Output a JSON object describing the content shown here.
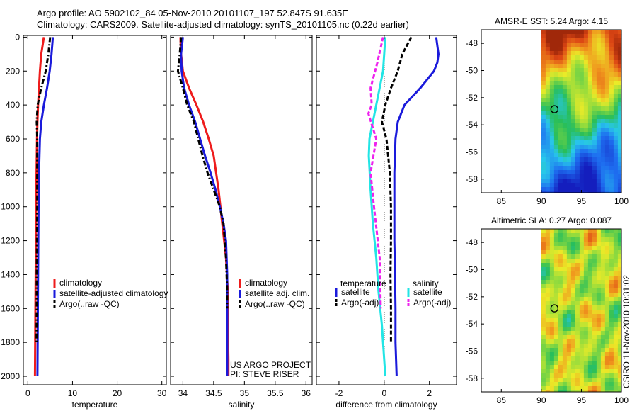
{
  "header": {
    "line1": "Argo profile: AO 5902102_84 05-Nov-2010 20101107_197 52.847S 91.635E",
    "line2": "Climatology: CARS2009. Satellite-adjusted climatology: synTS_20101105.nc (0.22d earlier)"
  },
  "footer": {
    "project": "US ARGO PROJECT",
    "pi": "PI: STEVE RISER",
    "stamp": "CSIRO 11-Nov-2010 10:31:02"
  },
  "colors": {
    "climatology": "#ee1c1c",
    "satellite": "#1a1adb",
    "argo": "#000000",
    "salinity_sat": "#22e5e5",
    "salinity_argo": "#ee22ee"
  },
  "chart_data": [
    {
      "type": "line",
      "id": "temperature",
      "xlabel": "temperature",
      "ylabel": "",
      "xlim": [
        -1,
        31
      ],
      "ylim": [
        2050,
        -10
      ],
      "xticks": [
        0,
        10,
        20,
        30
      ],
      "yticks": [
        0,
        200,
        400,
        600,
        800,
        1000,
        1200,
        1400,
        1600,
        1800,
        2000
      ],
      "legend": [
        "climatology",
        "satellite-adjusted climatology",
        "Argo(..raw -QC)"
      ],
      "series": [
        {
          "name": "climatology",
          "style": "solid",
          "color": "#ee1c1c",
          "x": [
            3.6,
            3.0,
            2.7,
            2.5,
            2.3,
            2.15,
            2.05,
            1.95,
            1.85,
            1.8,
            1.75,
            1.7,
            1.65,
            1.6
          ],
          "y": [
            0,
            100,
            200,
            300,
            400,
            500,
            600,
            800,
            1000,
            1200,
            1400,
            1600,
            1800,
            2000
          ]
        },
        {
          "name": "satellite-adjusted climatology",
          "style": "solid",
          "color": "#1a1adb",
          "x": [
            5.6,
            5.3,
            4.9,
            4.3,
            3.6,
            3.0,
            2.7,
            2.5,
            2.4,
            2.35,
            2.3,
            2.25,
            2.2,
            2.15
          ],
          "y": [
            0,
            100,
            200,
            300,
            400,
            500,
            600,
            800,
            1000,
            1200,
            1400,
            1600,
            1800,
            2000
          ]
        },
        {
          "name": "Argo(..raw -QC)",
          "style": "dashdot",
          "color": "#000000",
          "x": [
            5.0,
            4.6,
            4.0,
            3.0,
            2.2,
            2.0,
            2.1,
            2.1,
            2.1,
            2.05,
            2.0,
            2.0,
            1.95
          ],
          "y": [
            0,
            100,
            200,
            300,
            400,
            500,
            600,
            800,
            1000,
            1200,
            1400,
            1600,
            1800
          ]
        }
      ]
    },
    {
      "type": "line",
      "id": "salinity",
      "xlabel": "salinity",
      "xlim": [
        33.8,
        36.1
      ],
      "ylim": [
        2050,
        -10
      ],
      "xticks": [
        34,
        34.5,
        35,
        35.5,
        36
      ],
      "yticks": [
        0,
        200,
        400,
        600,
        800,
        1000,
        1200,
        1400,
        1600,
        1800,
        2000
      ],
      "legend": [
        "climatology",
        "satellite adj. clim.",
        "Argo(..raw -QC)"
      ],
      "series": [
        {
          "name": "climatology",
          "style": "solid",
          "color": "#ee1c1c",
          "x": [
            33.96,
            33.97,
            34.0,
            34.1,
            34.22,
            34.33,
            34.42,
            34.5,
            34.58,
            34.64,
            34.7,
            34.73,
            34.73,
            34.74,
            34.74
          ],
          "y": [
            0,
            100,
            200,
            300,
            400,
            500,
            600,
            700,
            900,
            1100,
            1300,
            1500,
            1700,
            1900,
            2000
          ]
        },
        {
          "name": "satellite adj. clim.",
          "style": "solid",
          "color": "#1a1adb",
          "x": [
            34.0,
            33.97,
            33.98,
            34.02,
            34.1,
            34.2,
            34.28,
            34.36,
            34.45,
            34.53,
            34.6,
            34.66,
            34.7,
            34.72,
            34.72,
            34.72,
            34.72
          ],
          "y": [
            0,
            100,
            200,
            300,
            400,
            500,
            600,
            700,
            800,
            900,
            1000,
            1100,
            1200,
            1400,
            1600,
            1800,
            2000
          ]
        },
        {
          "name": "Argo(..raw -QC)",
          "style": "dashdot",
          "color": "#000000",
          "x": [
            33.97,
            33.95,
            33.92,
            34.0,
            34.07,
            34.18,
            34.25,
            34.32,
            34.4,
            34.5,
            34.6,
            34.66,
            34.7,
            34.72,
            34.72
          ],
          "y": [
            0,
            100,
            200,
            300,
            400,
            500,
            600,
            700,
            800,
            900,
            1000,
            1100,
            1300,
            1500,
            1600
          ]
        }
      ]
    },
    {
      "type": "line",
      "id": "difference",
      "xlabel": "difference from climatology",
      "xlim": [
        -3,
        3.2
      ],
      "ylim": [
        2050,
        -10
      ],
      "xticks": [
        -2,
        0,
        2
      ],
      "yticks": [
        0,
        200,
        400,
        600,
        800,
        1000,
        1200,
        1400,
        1600,
        1800,
        2000
      ],
      "legend_temperature_title": "temperature",
      "legend_salinity_title": "salinity",
      "legend": [
        "satellite",
        "Argo(-adj)",
        "satellite",
        "Argo(-adj)"
      ],
      "series": [
        {
          "name": "temperature satellite",
          "style": "solid",
          "color": "#1a1adb",
          "x": [
            2.3,
            2.4,
            2.35,
            2.2,
            1.6,
            0.9,
            0.6,
            0.5,
            0.45,
            0.45,
            0.45,
            0.48,
            0.5,
            0.5,
            0.55
          ],
          "y": [
            0,
            100,
            150,
            200,
            300,
            400,
            500,
            600,
            800,
            1000,
            1200,
            1400,
            1600,
            1800,
            2000
          ]
        },
        {
          "name": "temperature Argo(-adj)",
          "style": "dashed",
          "color": "#000000",
          "x": [
            1.2,
            0.8,
            0.6,
            0.3,
            0.05,
            -0.1,
            0.1,
            0.25,
            0.3,
            0.3,
            0.28,
            0.3,
            0.3
          ],
          "y": [
            0,
            100,
            200,
            300,
            400,
            500,
            600,
            800,
            1000,
            1200,
            1400,
            1600,
            1800
          ]
        },
        {
          "name": "salinity satellite",
          "style": "solid",
          "color": "#22e5e5",
          "x": [
            0.05,
            -0.05,
            -0.2,
            -0.35,
            -0.5,
            -0.65,
            -0.68,
            -0.6,
            -0.5,
            -0.35,
            -0.25,
            -0.1,
            0.0,
            0.05
          ],
          "y": [
            0,
            200,
            300,
            400,
            500,
            600,
            700,
            900,
            1100,
            1300,
            1500,
            1700,
            1900,
            2000
          ]
        },
        {
          "name": "salinity Argo(-adj)",
          "style": "dashed",
          "color": "#ee22ee",
          "x": [
            -0.05,
            -0.3,
            -0.6,
            -0.55,
            -0.7,
            -0.35,
            -0.6,
            -0.45,
            -0.2,
            -0.15
          ],
          "y": [
            0,
            150,
            300,
            400,
            450,
            600,
            800,
            1000,
            1300,
            1600
          ]
        }
      ]
    },
    {
      "type": "heatmap",
      "id": "sst",
      "title": "AMSR-E SST: 5.24 Argo: 4.15",
      "xlim": [
        82.5,
        100
      ],
      "ylim": [
        -59,
        -47
      ],
      "xticks": [
        85,
        90,
        95,
        100
      ],
      "yticks": [
        -48,
        -50,
        -52,
        -54,
        -56,
        -58
      ],
      "marker": {
        "lon": 91.635,
        "lat": -52.847
      },
      "data_lon_min": 90
    },
    {
      "type": "heatmap",
      "id": "sla",
      "title": "Altimetric SLA: 0.27 Argo: 0.087",
      "xlim": [
        82.5,
        100
      ],
      "ylim": [
        -59,
        -47
      ],
      "xticks": [
        85,
        90,
        95,
        100
      ],
      "yticks": [
        -48,
        -50,
        -52,
        -54,
        -56,
        -58
      ],
      "marker": {
        "lon": 91.635,
        "lat": -52.847
      },
      "data_lon_min": 90
    }
  ]
}
